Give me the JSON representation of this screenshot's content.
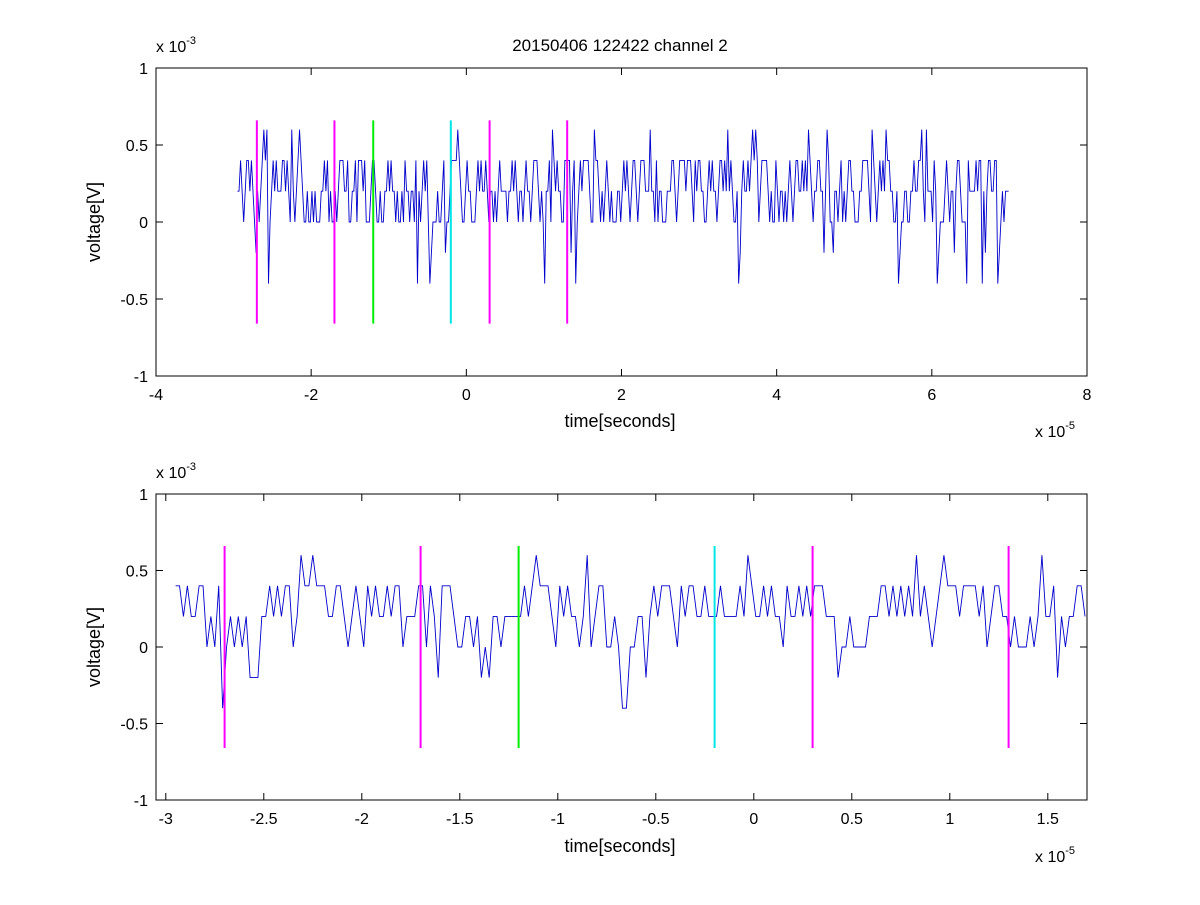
{
  "figure": {
    "title": "20150406 122422 channel 2"
  },
  "colors": {
    "trace": "#0000cc",
    "marker_magenta": "#ff00ff",
    "marker_green": "#00ee00",
    "marker_cyan": "#00e5e5",
    "axes": "#000000",
    "background": "#ffffff"
  },
  "chart_data": [
    {
      "type": "line",
      "title": "20150406 122422 channel 2",
      "xlabel": "time[seconds]",
      "ylabel": "voltage[V]",
      "x_exponent_label": "x 10",
      "x_exponent": "-5",
      "y_exponent_label": "x 10",
      "y_exponent": "-3",
      "xlim": [
        -4,
        8
      ],
      "ylim": [
        -1,
        1
      ],
      "x_unit_scale": "1e-5",
      "y_unit_scale": "1e-3",
      "xticks": [
        -4,
        -2,
        0,
        2,
        4,
        6,
        8
      ],
      "xtick_labels": [
        "-4",
        "-2",
        "0",
        "2",
        "4",
        "6",
        "8"
      ],
      "yticks": [
        -1,
        -0.5,
        0,
        0.5,
        1
      ],
      "ytick_labels": [
        "-1",
        "-0.5",
        "0",
        "0.5",
        "1"
      ],
      "grid": false,
      "series": [
        {
          "signal_x_range": [
            -2.95,
            7.0
          ],
          "signal_step": 0.02,
          "levels": [
            -0.6,
            -0.4,
            -0.2,
            0,
            0.2,
            0.4,
            0.6
          ],
          "baseline": 0.2
        }
      ],
      "markers": [
        {
          "x": -2.7,
          "y_range": [
            -0.66,
            0.66
          ],
          "color": "magenta"
        },
        {
          "x": -1.7,
          "y_range": [
            -0.66,
            0.66
          ],
          "color": "magenta"
        },
        {
          "x": -1.2,
          "y_range": [
            -0.66,
            0.66
          ],
          "color": "green"
        },
        {
          "x": -0.2,
          "y_range": [
            -0.66,
            0.66
          ],
          "color": "cyan"
        },
        {
          "x": 0.3,
          "y_range": [
            -0.66,
            0.66
          ],
          "color": "magenta"
        },
        {
          "x": 1.3,
          "y_range": [
            -0.66,
            0.66
          ],
          "color": "magenta"
        }
      ]
    },
    {
      "type": "line",
      "title": "",
      "xlabel": "time[seconds]",
      "ylabel": "voltage[V]",
      "x_exponent_label": "x 10",
      "x_exponent": "-5",
      "y_exponent_label": "x 10",
      "y_exponent": "-3",
      "xlim": [
        -3.05,
        1.7
      ],
      "ylim": [
        -1,
        1
      ],
      "x_unit_scale": "1e-5",
      "y_unit_scale": "1e-3",
      "xticks": [
        -3,
        -2.5,
        -2,
        -1.5,
        -1,
        -0.5,
        0,
        0.5,
        1,
        1.5
      ],
      "xtick_labels": [
        "-3",
        "-2.5",
        "-2",
        "-1.5",
        "-1",
        "-0.5",
        "0",
        "0.5",
        "1",
        "1.5"
      ],
      "yticks": [
        -1,
        -0.5,
        0,
        0.5,
        1
      ],
      "ytick_labels": [
        "-1",
        "-0.5",
        "0",
        "0.5",
        "1"
      ],
      "grid": false,
      "series": [
        {
          "signal_x_range": [
            -2.95,
            1.7
          ],
          "signal_step": 0.02,
          "levels": [
            -0.6,
            -0.4,
            -0.2,
            0,
            0.2,
            0.4,
            0.6
          ],
          "baseline": 0.2
        }
      ],
      "markers": [
        {
          "x": -2.7,
          "y_range": [
            -0.66,
            0.66
          ],
          "color": "magenta"
        },
        {
          "x": -1.7,
          "y_range": [
            -0.66,
            0.66
          ],
          "color": "magenta"
        },
        {
          "x": -1.2,
          "y_range": [
            -0.66,
            0.66
          ],
          "color": "green"
        },
        {
          "x": -0.2,
          "y_range": [
            -0.66,
            0.66
          ],
          "color": "cyan"
        },
        {
          "x": 0.3,
          "y_range": [
            -0.66,
            0.66
          ],
          "color": "magenta"
        },
        {
          "x": 1.3,
          "y_range": [
            -0.66,
            0.66
          ],
          "color": "magenta"
        }
      ]
    }
  ]
}
